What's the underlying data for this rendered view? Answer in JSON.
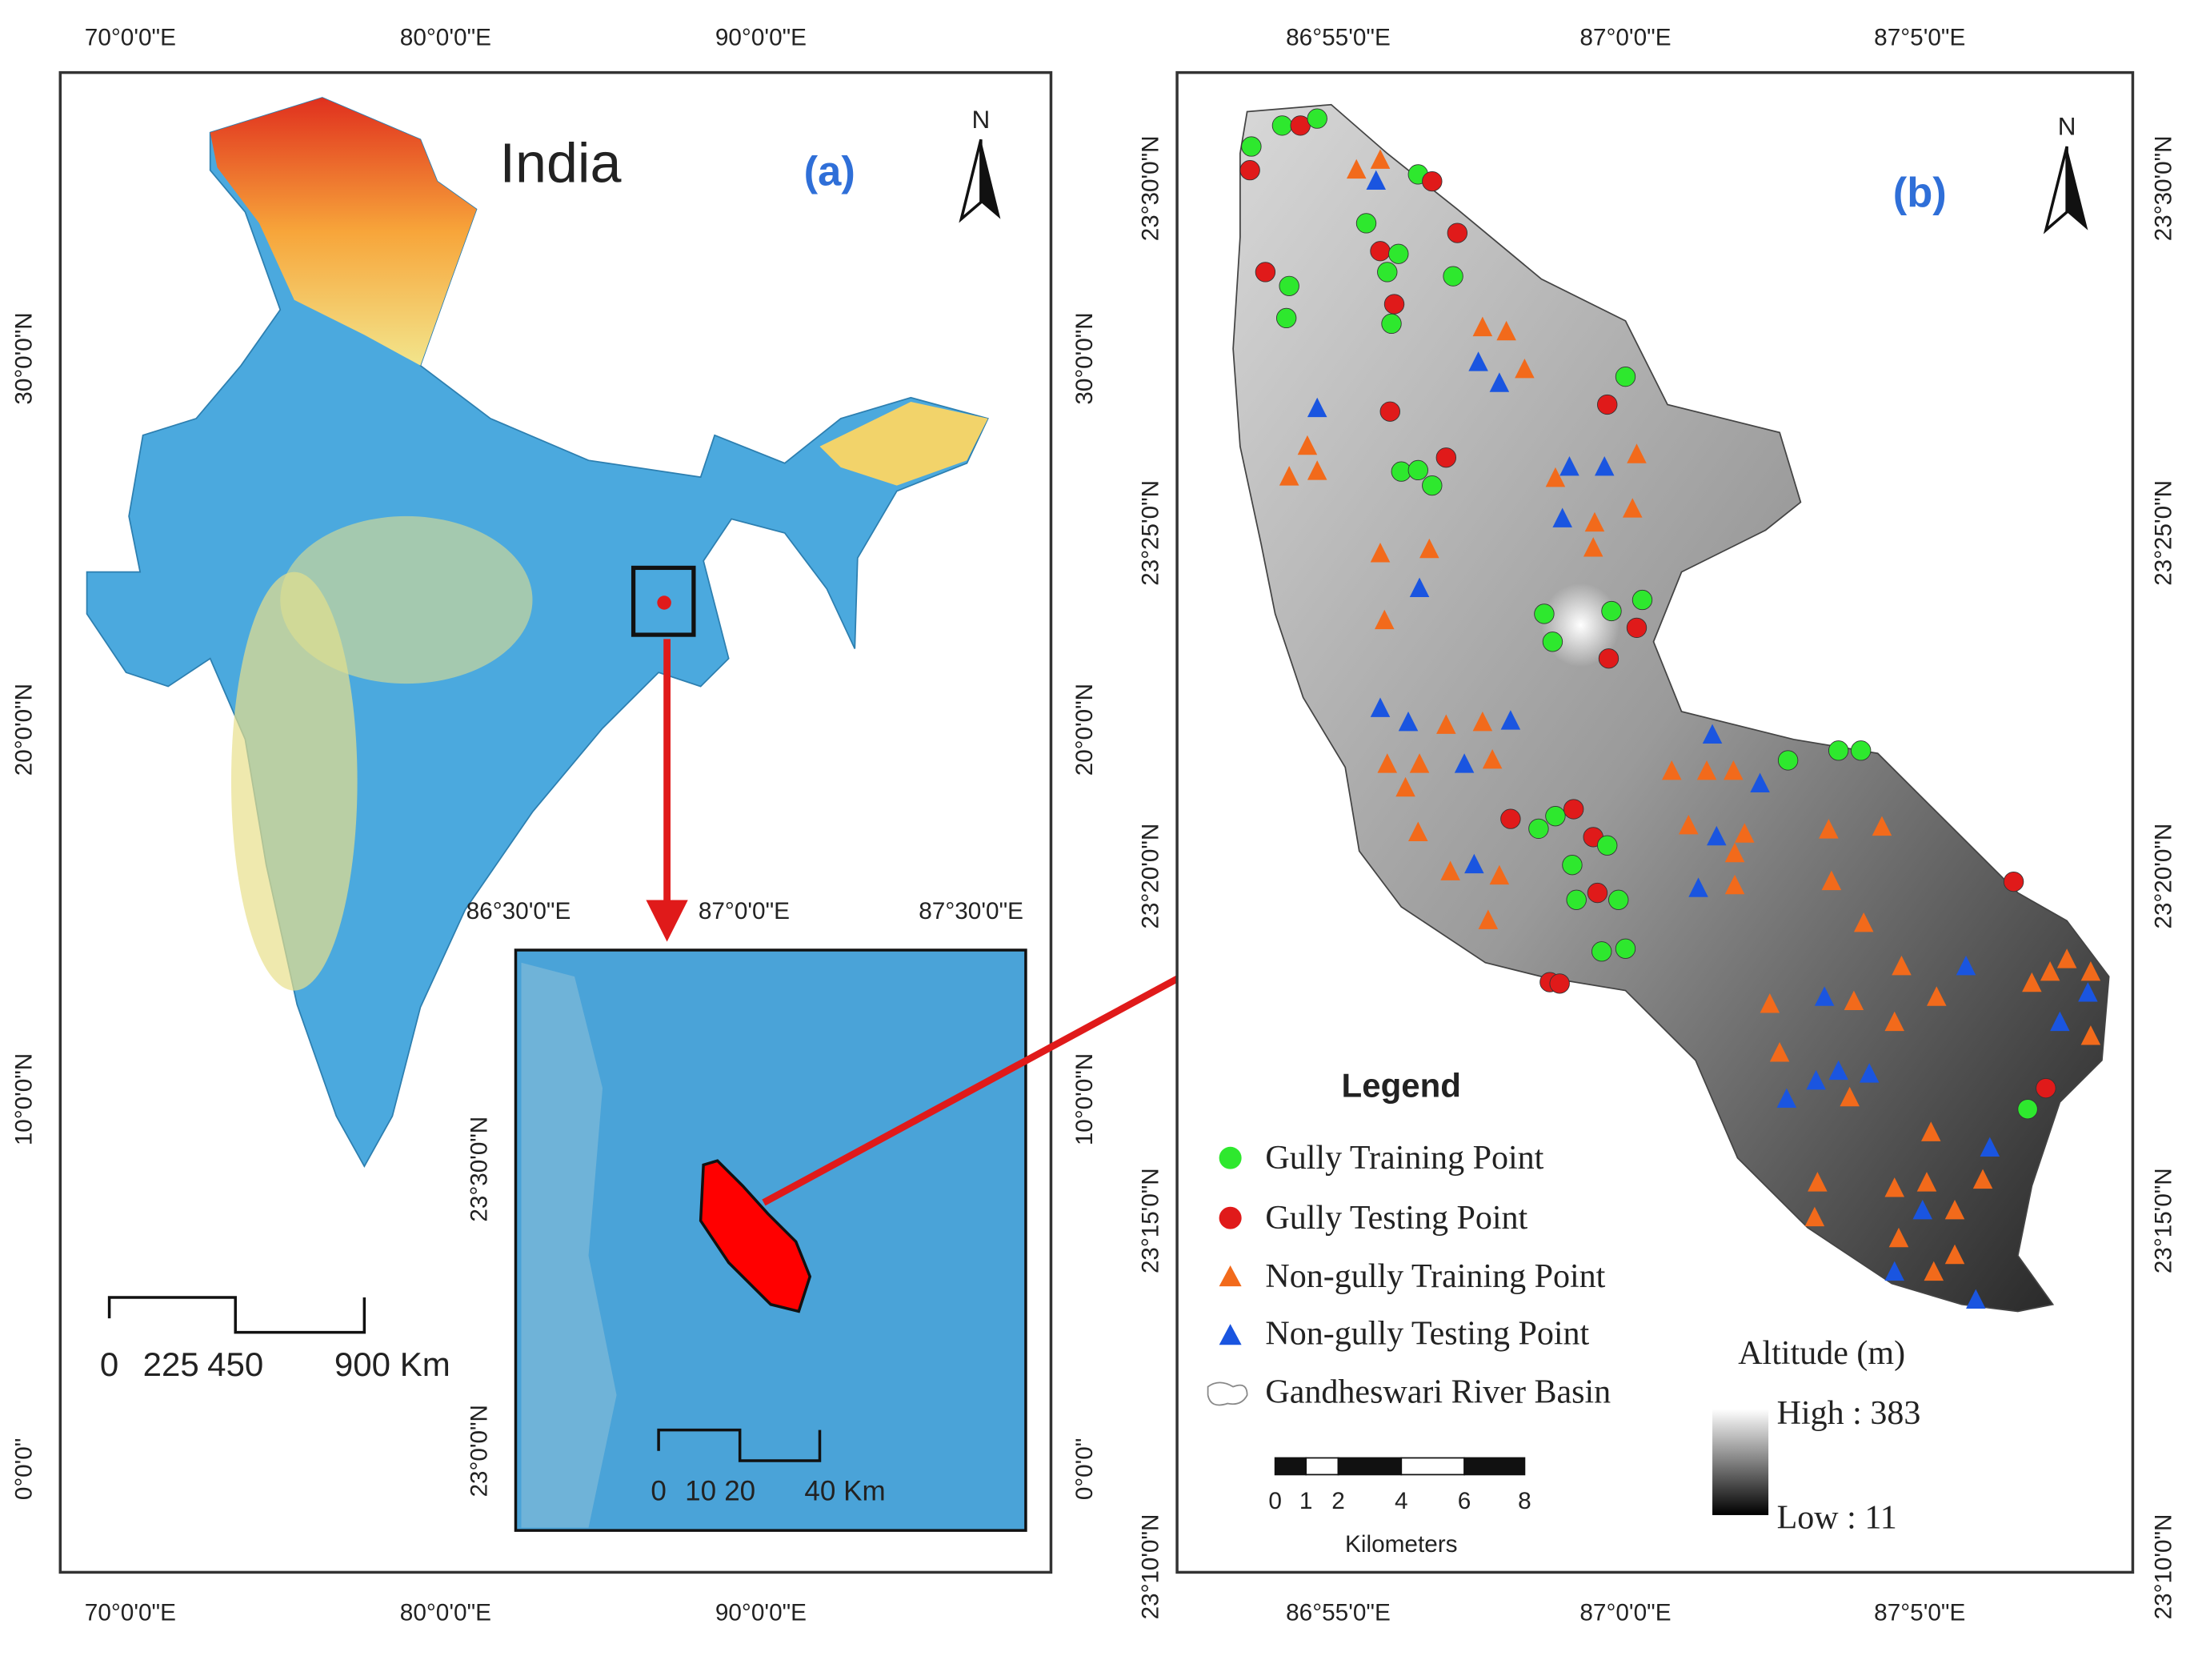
{
  "panel_a": {
    "title": "India",
    "label": "(a)",
    "north": "N",
    "lon_labels": [
      "70°0'0\"E",
      "80°0'0\"E",
      "90°0'0\"E"
    ],
    "lat_labels": [
      "30°0'0\"N",
      "20°0'0\"N",
      "10°0'0\"N",
      "0°0'0\""
    ],
    "scale_labels": [
      "0",
      "225",
      "450",
      "900 Km"
    ],
    "inset": {
      "lon_labels": [
        "86°30'0\"E",
        "87°0'0\"E",
        "87°30'0\"E"
      ],
      "lat_labels": [
        "23°30'0\"N",
        "23°0'0\"N"
      ],
      "scale_labels": [
        "0",
        "10",
        "20",
        "40 Km"
      ]
    }
  },
  "panel_b": {
    "label": "(b)",
    "north": "N",
    "lon_labels": [
      "86°55'0\"E",
      "87°0'0\"E",
      "87°5'0\"E"
    ],
    "lat_labels": [
      "23°30'0\"N",
      "23°25'0\"N",
      "23°20'0\"N",
      "23°15'0\"N",
      "23°10'0\"N"
    ],
    "legend": {
      "title": "Legend",
      "items": [
        "Gully Training Point",
        "Gully Testing Point",
        "Non-gully Training Point",
        "Non-gully Testing Point",
        "Gandheswari River Basin"
      ]
    },
    "altitude": {
      "title": "Altitude (m)",
      "high": "High : 383",
      "low": "Low : 11"
    },
    "scale_labels": [
      "0",
      "1",
      "2",
      "4",
      "6",
      "8"
    ],
    "scale_unit": "Kilometers"
  }
}
